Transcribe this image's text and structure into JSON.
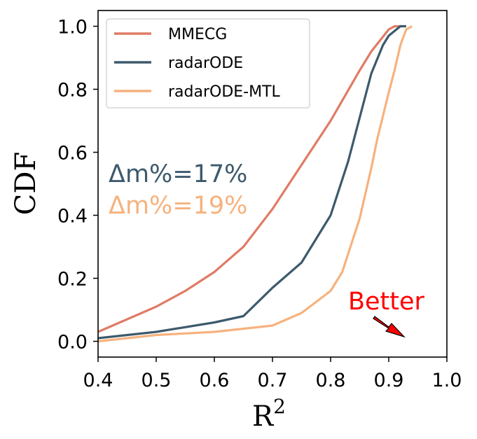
{
  "chart_data": {
    "type": "line",
    "xlabel": "R",
    "xlabel_sup": "2",
    "ylabel": "CDF",
    "xlim": [
      0.4,
      1.0
    ],
    "ylim": [
      -0.05,
      1.05
    ],
    "xticks": [
      "0.4",
      "0.5",
      "0.6",
      "0.7",
      "0.8",
      "0.9",
      "1.0"
    ],
    "yticks": [
      "0.0",
      "0.2",
      "0.4",
      "0.6",
      "0.8",
      "1.0"
    ],
    "grid": false,
    "legend_position": "top-left",
    "series": [
      {
        "name": "MMECG",
        "color": "#e07b65",
        "x": [
          0.4,
          0.45,
          0.5,
          0.55,
          0.6,
          0.65,
          0.7,
          0.75,
          0.8,
          0.85,
          0.87,
          0.9,
          0.91,
          0.92
        ],
        "y": [
          0.03,
          0.07,
          0.11,
          0.16,
          0.22,
          0.3,
          0.42,
          0.56,
          0.7,
          0.86,
          0.92,
          0.99,
          1.0,
          1.0
        ]
      },
      {
        "name": "radarODE",
        "color": "#3d5a6c",
        "x": [
          0.4,
          0.5,
          0.6,
          0.65,
          0.7,
          0.75,
          0.8,
          0.83,
          0.85,
          0.87,
          0.89,
          0.9,
          0.92,
          0.93
        ],
        "y": [
          0.01,
          0.03,
          0.06,
          0.08,
          0.17,
          0.25,
          0.4,
          0.57,
          0.71,
          0.85,
          0.94,
          0.97,
          1.0,
          1.0
        ]
      },
      {
        "name": "radarODE-MTL",
        "color": "#f6b27e",
        "x": [
          0.4,
          0.5,
          0.6,
          0.65,
          0.7,
          0.75,
          0.8,
          0.82,
          0.85,
          0.87,
          0.88,
          0.9,
          0.91,
          0.92,
          0.93,
          0.94
        ],
        "y": [
          0.0,
          0.02,
          0.03,
          0.04,
          0.05,
          0.09,
          0.16,
          0.22,
          0.39,
          0.55,
          0.64,
          0.79,
          0.86,
          0.94,
          0.99,
          1.0
        ]
      }
    ],
    "annotations": [
      {
        "text": "Δm%=17%",
        "color": "#3d5a6c"
      },
      {
        "text": "Δm%=19%",
        "color": "#f6b27e"
      },
      {
        "text": "Better",
        "color": "#ff0000"
      }
    ]
  }
}
